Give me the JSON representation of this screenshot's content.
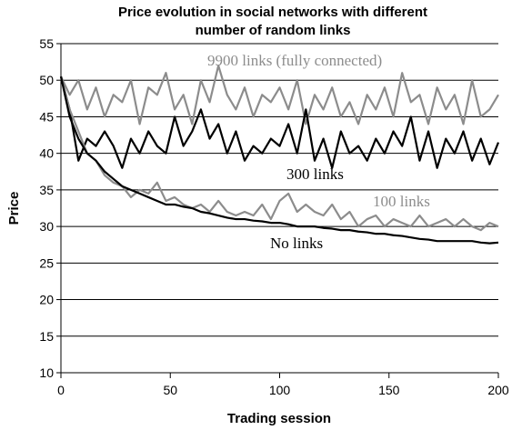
{
  "chart_data": {
    "type": "line",
    "title": [
      "Price evolution in social networks with different",
      "number of random links"
    ],
    "xlabel": "Trading session",
    "ylabel": "Price",
    "x": [
      0,
      4,
      8,
      12,
      16,
      20,
      24,
      28,
      32,
      36,
      40,
      44,
      48,
      52,
      56,
      60,
      64,
      68,
      72,
      76,
      80,
      84,
      88,
      92,
      96,
      100,
      104,
      108,
      112,
      116,
      120,
      124,
      128,
      132,
      136,
      140,
      144,
      148,
      152,
      156,
      160,
      164,
      168,
      172,
      176,
      180,
      184,
      188,
      192,
      196,
      200
    ],
    "xlim": [
      0,
      200
    ],
    "xticks": [
      0,
      50,
      100,
      150,
      200
    ],
    "ylim": [
      10,
      55
    ],
    "yticks": [
      10,
      15,
      20,
      25,
      30,
      35,
      40,
      45,
      50,
      55
    ],
    "grid": true,
    "series": [
      {
        "name": "9900 links (fully connected)",
        "color": "#8c8c8c",
        "values": [
          50.5,
          48,
          50,
          46,
          49,
          45,
          48,
          47,
          50,
          44,
          49,
          48,
          51,
          46,
          48,
          44,
          50,
          47,
          52,
          48,
          46,
          49,
          45,
          48,
          47,
          49,
          46,
          50,
          44,
          48,
          46,
          49,
          45,
          47,
          44,
          48,
          46,
          49,
          45,
          51,
          47,
          48,
          44,
          49,
          46,
          48,
          44,
          50,
          45,
          46,
          48
        ]
      },
      {
        "name": "300 links",
        "color": "#000000",
        "values": [
          50.5,
          46,
          39,
          42,
          41,
          43,
          41,
          38,
          42,
          40,
          43,
          41,
          40,
          45,
          41,
          43,
          46,
          42,
          44,
          40,
          43,
          39,
          41,
          40,
          42,
          41,
          44,
          40,
          46,
          39,
          42,
          38,
          43,
          40,
          41,
          39,
          42,
          40,
          43,
          41,
          45,
          39,
          43,
          38,
          42,
          40,
          43,
          39,
          42,
          38.5,
          41.5
        ]
      },
      {
        "name": "100 links",
        "color": "#8c8c8c",
        "values": [
          50.5,
          46,
          43,
          40,
          39,
          37,
          36,
          35.5,
          34,
          35,
          34.5,
          36,
          33.5,
          34,
          33,
          32.5,
          33,
          32,
          33.5,
          32,
          31.5,
          32,
          31.5,
          33,
          31,
          33.5,
          34.5,
          32,
          33,
          32,
          31.5,
          33,
          31,
          32,
          30,
          31,
          31.5,
          30,
          31,
          30.5,
          30,
          31.5,
          30,
          30.5,
          31,
          30,
          31,
          30,
          29.5,
          30.5,
          30
        ]
      },
      {
        "name": "No links",
        "color": "#000000",
        "values": [
          50.5,
          45,
          42,
          40,
          39,
          37.5,
          36.5,
          35.5,
          35,
          34.5,
          34,
          33.5,
          33,
          33,
          32.7,
          32.5,
          32,
          31.8,
          31.5,
          31.2,
          31,
          31,
          30.8,
          30.7,
          30.5,
          30.5,
          30.3,
          30,
          30,
          30,
          29.8,
          29.7,
          29.5,
          29.5,
          29.3,
          29.2,
          29,
          29,
          28.8,
          28.7,
          28.5,
          28.3,
          28.2,
          28,
          28,
          28,
          28,
          28,
          27.8,
          27.7,
          27.8
        ]
      }
    ]
  }
}
